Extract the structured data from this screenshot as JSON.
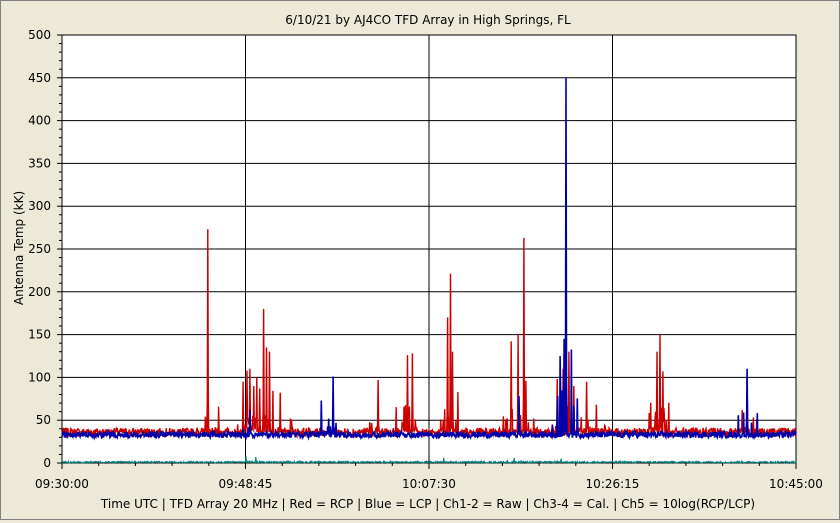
{
  "chart_data": {
    "type": "line",
    "title": "6/10/21  by  AJ4CO TFD Array  in  High Springs, FL",
    "ylabel": "Antenna Temp (kK)",
    "xlabel": "Time UTC  |  TFD Array 20 MHz  |  Red = RCP  |  Blue = LCP  |  Ch1-2 = Raw  |  Ch3-4 = Cal.  |  Ch5 = 10log(RCP/LCP)",
    "x_ticks": [
      "09:30:00",
      "09:48:45",
      "10:07:30",
      "10:26:15",
      "10:45:00"
    ],
    "x_range_minutes": [
      0,
      75
    ],
    "ylim": [
      0,
      500
    ],
    "y_ticks": [
      0,
      50,
      100,
      150,
      200,
      250,
      300,
      350,
      400,
      450,
      500
    ],
    "grid": true,
    "colors": {
      "rcp": "#cc0000",
      "lcp": "#0000aa",
      "ratio": "#008080",
      "background": "#ffffff"
    },
    "series": [
      {
        "name": "RCP",
        "color": "#cc0000",
        "baseline": 36,
        "peaks": [
          {
            "t": 14.9,
            "v": 273
          },
          {
            "t": 18.5,
            "v": 95
          },
          {
            "t": 18.9,
            "v": 108
          },
          {
            "t": 19.2,
            "v": 110
          },
          {
            "t": 19.6,
            "v": 90
          },
          {
            "t": 19.9,
            "v": 100
          },
          {
            "t": 20.2,
            "v": 87
          },
          {
            "t": 20.6,
            "v": 180
          },
          {
            "t": 20.9,
            "v": 135
          },
          {
            "t": 21.2,
            "v": 130
          },
          {
            "t": 22.3,
            "v": 82
          },
          {
            "t": 32.3,
            "v": 97
          },
          {
            "t": 35.3,
            "v": 126
          },
          {
            "t": 35.8,
            "v": 128
          },
          {
            "t": 39.4,
            "v": 170
          },
          {
            "t": 39.7,
            "v": 221
          },
          {
            "t": 39.9,
            "v": 130
          },
          {
            "t": 45.9,
            "v": 142
          },
          {
            "t": 46.6,
            "v": 150
          },
          {
            "t": 47.2,
            "v": 263
          },
          {
            "t": 50.6,
            "v": 98
          },
          {
            "t": 51.2,
            "v": 110
          },
          {
            "t": 51.8,
            "v": 130
          },
          {
            "t": 52.3,
            "v": 90
          },
          {
            "t": 53.6,
            "v": 95
          },
          {
            "t": 54.6,
            "v": 68
          },
          {
            "t": 60.8,
            "v": 130
          },
          {
            "t": 61.1,
            "v": 150
          },
          {
            "t": 61.4,
            "v": 107
          },
          {
            "t": 69.5,
            "v": 62
          },
          {
            "t": 70.0,
            "v": 102
          }
        ]
      },
      {
        "name": "LCP",
        "color": "#0000aa",
        "baseline": 33,
        "peaks": [
          {
            "t": 19.2,
            "v": 62
          },
          {
            "t": 26.5,
            "v": 73
          },
          {
            "t": 27.7,
            "v": 101
          },
          {
            "t": 51.5,
            "v": 450
          },
          {
            "t": 51.3,
            "v": 145
          },
          {
            "t": 70.0,
            "v": 110
          },
          {
            "t": 46.7,
            "v": 78
          }
        ]
      },
      {
        "name": "10log(RCP/LCP)",
        "color": "#008080",
        "baseline": 1,
        "peaks": [
          {
            "t": 18.8,
            "v": 8
          },
          {
            "t": 19.8,
            "v": 7
          },
          {
            "t": 39.0,
            "v": 6
          },
          {
            "t": 46.2,
            "v": 6
          },
          {
            "t": 51.0,
            "v": 5
          }
        ]
      }
    ]
  }
}
